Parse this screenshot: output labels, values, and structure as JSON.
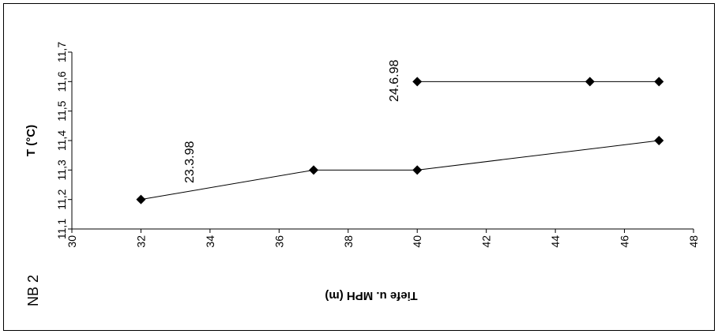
{
  "chart_data": {
    "type": "line",
    "plot_id": "NB 2",
    "xlabel": "Tiefe u. MPH (m)",
    "ylabel": "T (°C)",
    "xlim": [
      30,
      48
    ],
    "ylim": [
      11.1,
      11.7
    ],
    "x_ticks": [
      "30",
      "32",
      "34",
      "36",
      "38",
      "40",
      "42",
      "44",
      "46",
      "48"
    ],
    "y_ticks": [
      "11,1",
      "11,2",
      "11,3",
      "11,4",
      "11,5",
      "11,6",
      "11,7"
    ],
    "grid": false,
    "legend": "none",
    "marker": "diamond",
    "color": "#000000",
    "series": [
      {
        "name": "23.3.98",
        "x": [
          32,
          37,
          40,
          47
        ],
        "y": [
          11.2,
          11.3,
          11.3,
          11.4
        ]
      },
      {
        "name": "24.6.98",
        "x": [
          40,
          45,
          47
        ],
        "y": [
          11.6,
          11.6,
          11.6
        ]
      }
    ]
  }
}
